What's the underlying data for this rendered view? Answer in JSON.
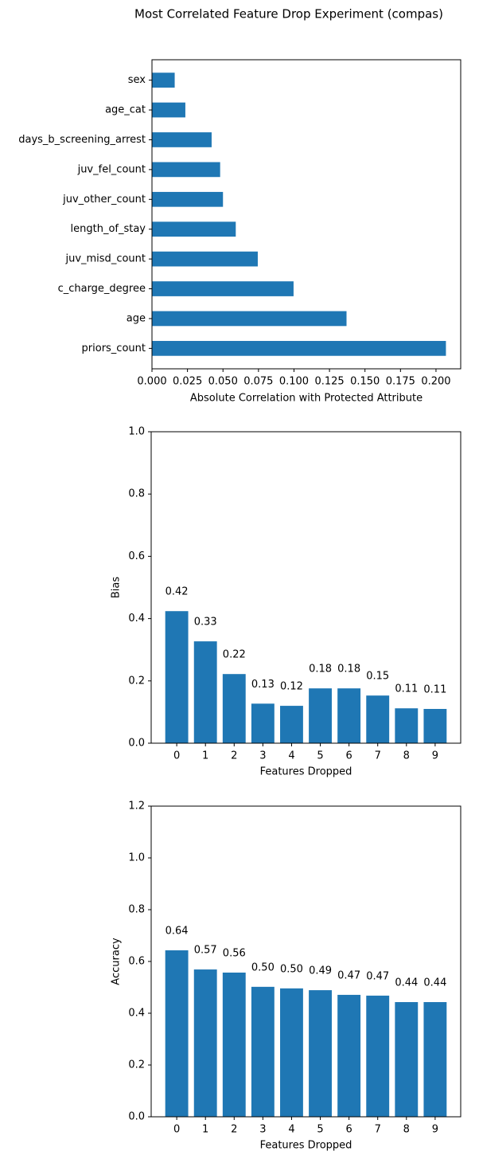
{
  "title": "Most Correlated Feature Drop Experiment (compas)",
  "chart_data": [
    {
      "type": "bar",
      "orientation": "horizontal",
      "color": "#1f77b4",
      "xlabel": "Absolute Correlation with Protected Attribute",
      "categories": [
        "priors_count",
        "age",
        "c_charge_degree",
        "juv_misd_count",
        "length_of_stay",
        "juv_other_count",
        "juv_fel_count",
        "days_b_screening_arrest",
        "age_cat",
        "sex"
      ],
      "values": [
        0.207,
        0.137,
        0.0997,
        0.0745,
        0.059,
        0.05,
        0.048,
        0.042,
        0.0235,
        0.016
      ],
      "xlim": [
        0,
        0.2174
      ],
      "xticks": [
        {
          "value": 0,
          "label": "0.000"
        },
        {
          "value": 0.025,
          "label": "0.025"
        },
        {
          "value": 0.05,
          "label": "0.050"
        },
        {
          "value": 0.075,
          "label": "0.075"
        },
        {
          "value": 0.1,
          "label": "0.100"
        },
        {
          "value": 0.125,
          "label": "0.125"
        },
        {
          "value": 0.15,
          "label": "0.150"
        },
        {
          "value": 0.175,
          "label": "0.175"
        },
        {
          "value": 0.2,
          "label": "0.200"
        }
      ]
    },
    {
      "type": "bar",
      "color": "#1f77b4",
      "xlabel": "Features Dropped",
      "ylabel": "Bias",
      "categories": [
        0,
        1,
        2,
        3,
        4,
        5,
        6,
        7,
        8,
        9
      ],
      "values": [
        0.424,
        0.327,
        0.222,
        0.127,
        0.12,
        0.176,
        0.176,
        0.153,
        0.112,
        0.11
      ],
      "value_labels": [
        "0.42",
        "0.33",
        "0.22",
        "0.13",
        "0.12",
        "0.18",
        "0.18",
        "0.15",
        "0.11",
        "0.11"
      ],
      "ylim": [
        0,
        1
      ],
      "yticks": [
        {
          "value": 0,
          "label": "0.0"
        },
        0.2,
        0.4,
        0.6,
        0.8,
        {
          "value": 1,
          "label": "1.0"
        }
      ]
    },
    {
      "type": "bar",
      "color": "#1f77b4",
      "xlabel": "Features Dropped",
      "ylabel": "Accuracy",
      "categories": [
        0,
        1,
        2,
        3,
        4,
        5,
        6,
        7,
        8,
        9
      ],
      "values": [
        0.643,
        0.569,
        0.557,
        0.502,
        0.496,
        0.489,
        0.471,
        0.468,
        0.443,
        0.443
      ],
      "value_labels": [
        "0.64",
        "0.57",
        "0.56",
        "0.50",
        "0.50",
        "0.49",
        "0.47",
        "0.47",
        "0.44",
        "0.44"
      ],
      "ylim": [
        0,
        1.2
      ],
      "yticks": [
        {
          "value": 0,
          "label": "0.0"
        },
        0.2,
        0.4,
        0.6,
        0.8,
        {
          "value": 1,
          "label": "1.0"
        },
        1.2
      ]
    }
  ]
}
